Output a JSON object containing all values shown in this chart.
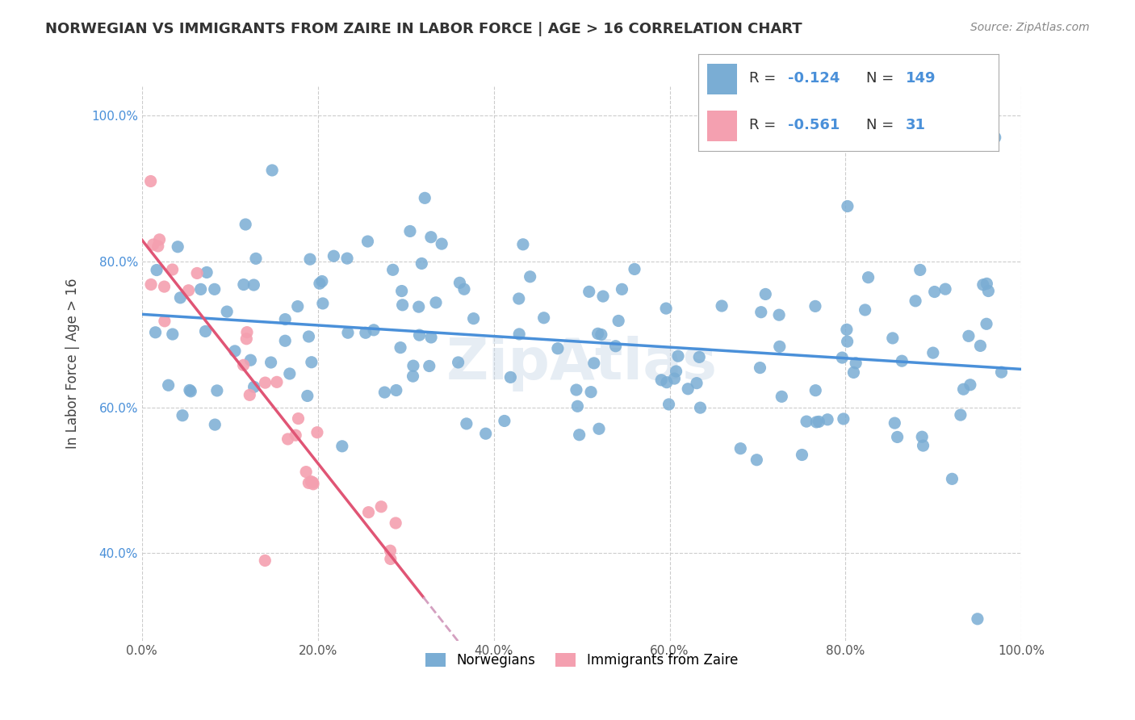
{
  "title": "NORWEGIAN VS IMMIGRANTS FROM ZAIRE IN LABOR FORCE | AGE > 16 CORRELATION CHART",
  "source": "Source: ZipAtlas.com",
  "ylabel": "In Labor Force | Age > 16",
  "watermark": "ZipAtlas",
  "legend_labels": [
    "Norwegians",
    "Immigrants from Zaire"
  ],
  "R_norwegian": -0.124,
  "N_norwegian": 149,
  "R_zaire": -0.561,
  "N_zaire": 31,
  "x_ticks": [
    0.0,
    0.2,
    0.4,
    0.6,
    0.8,
    1.0
  ],
  "x_tick_labels": [
    "0.0%",
    "20.0%",
    "40.0%",
    "60.0%",
    "80.0%",
    "100.0%"
  ],
  "y_ticks": [
    0.4,
    0.6,
    0.8,
    1.0
  ],
  "y_tick_labels": [
    "40.0%",
    "60.0%",
    "80.0%",
    "100.0%"
  ],
  "color_norwegian": "#7aadd4",
  "color_norwegian_line": "#4a90d9",
  "color_zaire": "#f4a0b0",
  "color_zaire_line": "#e05575",
  "color_zaire_line_dashed": "#d4a0c0",
  "background_color": "#ffffff",
  "grid_color": "#cccccc"
}
